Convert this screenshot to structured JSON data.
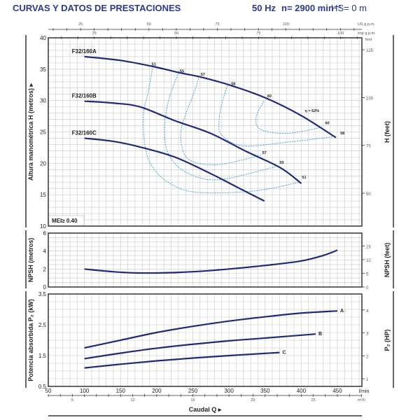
{
  "header": {
    "title": "CURVAS Y DATOS DE PRESTACIONES",
    "frequency": "50 Hz",
    "speed": "n= 2900 min⁻¹",
    "suction": "HS= 0 m"
  },
  "colors": {
    "curve": "#1f2a7a",
    "efficiency": "#3fa6d8",
    "grid": "#c8c8c8",
    "title": "#2a3a8c"
  },
  "chart_data": [
    {
      "type": "line",
      "title": "",
      "xlabel": "Caudal Q ▸",
      "x_unit": "l/min",
      "xlim": [
        50,
        484
      ],
      "xticks": [
        50,
        100,
        150,
        200,
        250,
        300,
        350,
        400,
        450
      ],
      "secondary_x_axes": [
        {
          "unit": "US g.p.m.",
          "ticks": [
            25,
            50,
            75,
            100
          ],
          "factor_lmin": 3.785
        },
        {
          "unit": "imp g.p.m.",
          "ticks": [
            25,
            50,
            75,
            100
          ],
          "factor_lmin": 4.546
        },
        {
          "unit": "m³/h",
          "ticks": [
            5,
            10,
            15,
            20,
            25
          ],
          "factor_lmin": 16.667
        }
      ],
      "ylabel": "Altura manométrica H  (metros) ▸",
      "ylim": [
        10,
        40
      ],
      "yticks": [
        10,
        15,
        20,
        25,
        30,
        35,
        40
      ],
      "y2label": "H (feet)",
      "y2_unit": "feet",
      "y2ticks": [
        50,
        75,
        100,
        125
      ],
      "grid": true,
      "annotation": "MEI≥ 0.40",
      "series": [
        {
          "name": "F32/160A",
          "x": [
            100,
            150,
            196,
            233,
            259,
            303,
            351,
            400,
            448
          ],
          "y": [
            37.0,
            36.4,
            35.4,
            34.4,
            33.8,
            32.4,
            30.4,
            27.6,
            24.1
          ]
        },
        {
          "name": "F32/160B",
          "x": [
            100,
            140,
            177,
            225,
            274,
            322,
            371,
            400
          ],
          "y": [
            29.9,
            29.6,
            29.0,
            26.8,
            24.8,
            22.0,
            19.3,
            16.8
          ]
        },
        {
          "name": "F32/160C",
          "x": [
            100,
            140,
            177,
            225,
            274,
            313,
            349
          ],
          "y": [
            24.0,
            23.5,
            22.6,
            21.0,
            18.4,
            16.1,
            14.0
          ]
        }
      ],
      "efficiency_curves": [
        {
          "label": "51",
          "x": [
            194,
            188.5,
            181.7,
            183.7,
            193.3,
            215.6,
            254.4,
            334.7,
            397.7
          ],
          "y": [
            35.1,
            31.5,
            27.8,
            22.9,
            19.6,
            17.0,
            15.4,
            15.6,
            17.0
          ]
        },
        {
          "label": "55",
          "x": [
            230.1,
            215.6,
            210.8,
            217.6,
            241.8,
            286.3,
            368.6
          ],
          "y": [
            34.5,
            29.6,
            24.8,
            21.2,
            18.5,
            17.4,
            19.6
          ]
        },
        {
          "label": "57",
          "x": [
            259.2,
            251.5,
            235,
            235,
            247.6,
            286.3,
            344.4
          ],
          "y": [
            33.9,
            31.2,
            26,
            22.6,
            20.4,
            19.8,
            21.3
          ]
        },
        {
          "label": "58",
          "x": [
            298,
            290.2,
            286.3,
            290.2,
            319.3,
            383.2,
            448
          ],
          "y": [
            32.4,
            29.6,
            26.7,
            24.5,
            22.8,
            23.4,
            24.3
          ]
        },
        {
          "label": "60",
          "x": [
            348.3,
            338.6,
            338.6,
            351.2,
            383.2,
            426.8
          ],
          "y": [
            29.9,
            27.8,
            26,
            25.1,
            24.8,
            25.7
          ]
        }
      ],
      "efficiency_labels": [
        {
          "text": "51",
          "x": 193,
          "y": 35.6
        },
        {
          "text": "55",
          "x": 232,
          "y": 34.5
        },
        {
          "text": "57",
          "x": 261,
          "y": 34.0
        },
        {
          "text": "58",
          "x": 303,
          "y": 32.5
        },
        {
          "text": "60",
          "x": 353,
          "y": 30.5
        },
        {
          "text": "η = 62%",
          "x": 405,
          "y": 28.2
        },
        {
          "text": "60",
          "x": 433,
          "y": 26.2
        },
        {
          "text": "58",
          "x": 454,
          "y": 24.6
        },
        {
          "text": "57",
          "x": 346,
          "y": 21.5
        },
        {
          "text": "55",
          "x": 370,
          "y": 19.9
        },
        {
          "text": "51",
          "x": 401,
          "y": 17.6
        }
      ]
    },
    {
      "type": "line",
      "ylabel": "NPSH  (metros)",
      "ylim": [
        0,
        6
      ],
      "yticks": [
        0,
        2,
        4,
        6
      ],
      "y2label": "NPSH  (feet)",
      "y2ticks": [
        0,
        5,
        10,
        15
      ],
      "grid": true,
      "series": [
        {
          "x": [
            100,
            140,
            175,
            220,
            260,
            300,
            350,
            400,
            430,
            450
          ],
          "y": [
            2.0,
            1.7,
            1.56,
            1.6,
            1.75,
            2.0,
            2.4,
            2.9,
            3.5,
            4.1
          ]
        }
      ]
    },
    {
      "type": "line",
      "ylabel": "Potencia absorbida P₂ (kW)",
      "ylim": [
        0.5,
        3.5
      ],
      "yticks": [
        0.5,
        1.5,
        2.5,
        3.5
      ],
      "y2label": "P₂  (HP)",
      "y2ticks": [
        1,
        2,
        3,
        4
      ],
      "grid": true,
      "series": [
        {
          "name": "A",
          "x": [
            100,
            150,
            200,
            250,
            300,
            350,
            400,
            450
          ],
          "y": [
            1.75,
            2.0,
            2.25,
            2.45,
            2.62,
            2.76,
            2.88,
            2.95
          ]
        },
        {
          "name": "B",
          "x": [
            100,
            150,
            200,
            250,
            300,
            350,
            420
          ],
          "y": [
            1.4,
            1.58,
            1.74,
            1.87,
            1.98,
            2.07,
            2.2
          ]
        },
        {
          "name": "C",
          "x": [
            100,
            150,
            200,
            250,
            300,
            370
          ],
          "y": [
            1.1,
            1.22,
            1.33,
            1.42,
            1.5,
            1.6
          ]
        }
      ]
    }
  ]
}
